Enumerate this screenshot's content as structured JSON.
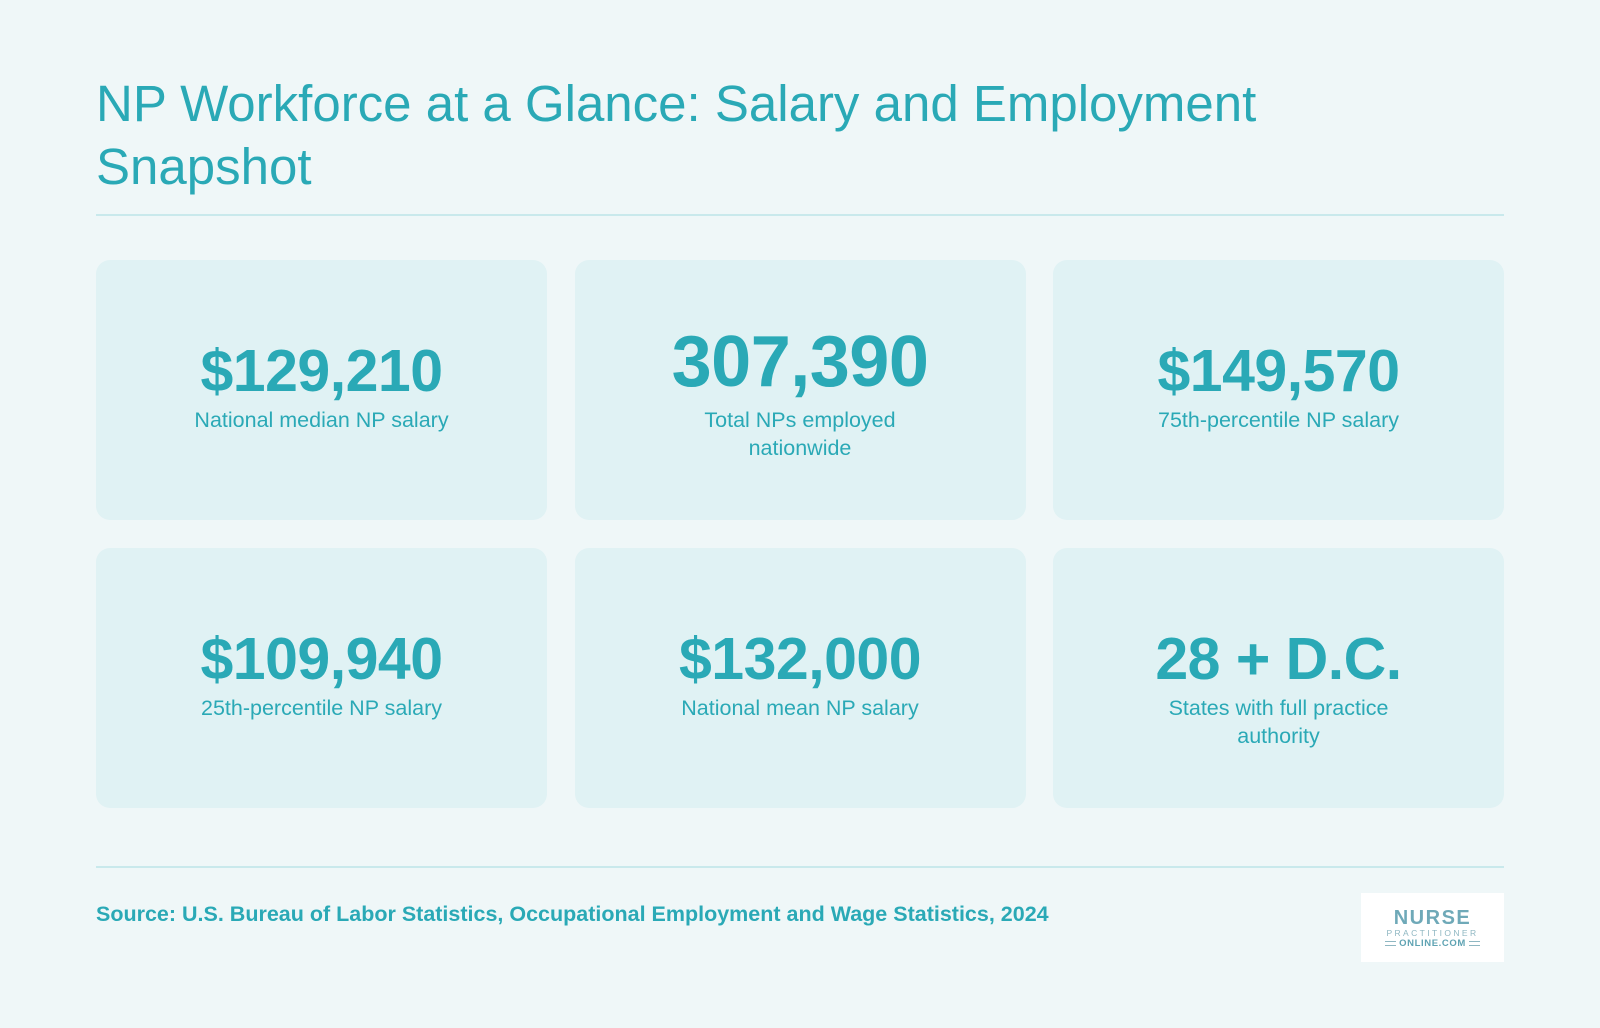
{
  "header": {
    "title": "NP Workforce at a Glance: Salary and Employment Snapshot"
  },
  "stats": [
    {
      "value": "$129,210",
      "label": "National median NP salary"
    },
    {
      "value": "307,390",
      "label": "Total NPs employed nationwide"
    },
    {
      "value": "$149,570",
      "label": "75th-percentile NP salary"
    },
    {
      "value": "$109,940",
      "label": "25th-percentile NP salary"
    },
    {
      "value": "$132,000",
      "label": "National mean NP salary"
    },
    {
      "value": "28 + D.C.",
      "label": "States with full practice authority"
    }
  ],
  "footer": {
    "source": "Source: U.S. Bureau of Labor Statistics, Occupational Employment and Wage Statistics, 2024"
  },
  "logo": {
    "line1": "NURSE",
    "line2": "PRACTITIONER",
    "line3": "ONLINE.COM"
  },
  "colors": {
    "accent": "#2aa9b6",
    "background": "#eff7f8",
    "card": "#e0f2f4",
    "rule": "#c9e9ec"
  }
}
